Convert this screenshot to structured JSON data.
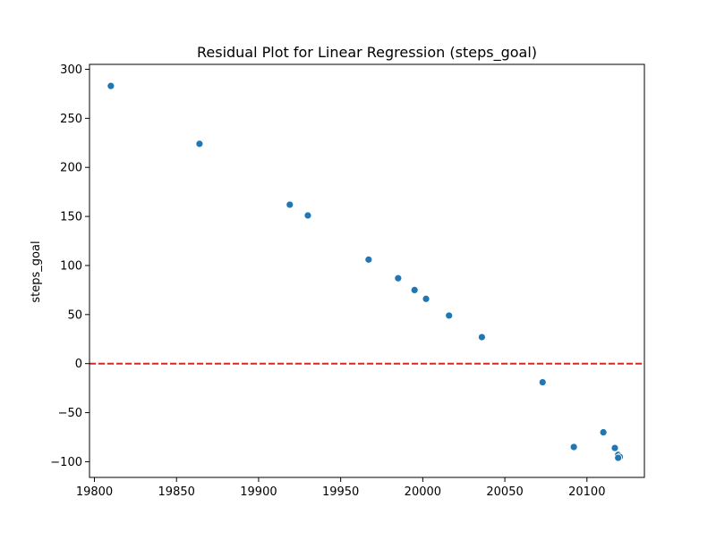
{
  "chart_data": {
    "type": "scatter",
    "title": "Residual Plot for Linear Regression (steps_goal)",
    "xlabel": "",
    "ylabel": "steps_goal",
    "xlim": [
      19797,
      20135
    ],
    "ylim": [
      -116,
      305
    ],
    "x_ticks": [
      19800,
      19850,
      19900,
      19950,
      20000,
      20050,
      20100
    ],
    "y_ticks": [
      -100,
      -50,
      0,
      50,
      100,
      150,
      200,
      250,
      300
    ],
    "x_tick_labels": [
      "19800",
      "19850",
      "19900",
      "19950",
      "20000",
      "20050",
      "20100"
    ],
    "y_tick_labels": [
      "−100",
      "−50",
      "0",
      "50",
      "100",
      "150",
      "200",
      "250",
      "300"
    ],
    "grid": false,
    "reference_line": {
      "y": 0,
      "color": "#d62728",
      "style": "dashed"
    },
    "point_color": "#1f77b4",
    "series": [
      {
        "x": [
          19810,
          19864,
          19919,
          19930,
          19967,
          19985,
          19995,
          20002,
          20016,
          20036,
          20073,
          20092,
          20110,
          20117,
          20119,
          20120,
          20119
        ],
        "y": [
          283,
          224,
          162,
          151,
          106,
          87,
          75,
          66,
          49,
          27,
          -19,
          -85,
          -70,
          -86,
          -93,
          -95,
          -96
        ]
      }
    ]
  }
}
